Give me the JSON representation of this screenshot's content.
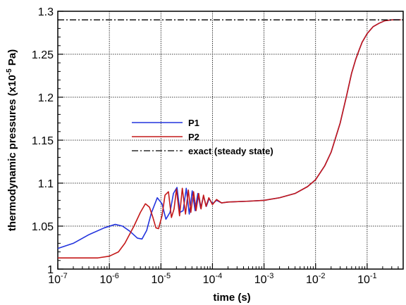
{
  "chart_data": {
    "type": "line",
    "x_scale": "log",
    "xlim": [
      1e-07,
      0.5
    ],
    "ylim": [
      1.0,
      1.3
    ],
    "grid": true,
    "legend_placement": "center-left",
    "xlabel": "time (s)",
    "ylabel_parts": [
      "thermodynamic pressures (x10",
      "-5",
      " Pa)"
    ],
    "x_ticks": [
      {
        "value": 1e-07,
        "base": "10",
        "exp": "-7"
      },
      {
        "value": 1e-06,
        "base": "10",
        "exp": "-6"
      },
      {
        "value": 1e-05,
        "base": "10",
        "exp": "-5"
      },
      {
        "value": 0.0001,
        "base": "10",
        "exp": "-4"
      },
      {
        "value": 0.001,
        "base": "10",
        "exp": "-3"
      },
      {
        "value": 0.01,
        "base": "10",
        "exp": "-2"
      },
      {
        "value": 0.1,
        "base": "10",
        "exp": "-1"
      }
    ],
    "y_ticks": [
      {
        "value": 1.0,
        "label": "1"
      },
      {
        "value": 1.05,
        "label": "1.05"
      },
      {
        "value": 1.1,
        "label": "1.1"
      },
      {
        "value": 1.15,
        "label": "1.15"
      },
      {
        "value": 1.2,
        "label": "1.2"
      },
      {
        "value": 1.25,
        "label": "1.25"
      },
      {
        "value": 1.3,
        "label": "1.3"
      }
    ],
    "series": [
      {
        "name": "P1",
        "color": "#2233dd",
        "dash": "solid",
        "points": [
          [
            1e-07,
            1.024
          ],
          [
            2e-07,
            1.03
          ],
          [
            4e-07,
            1.04
          ],
          [
            8e-07,
            1.048
          ],
          [
            1.3e-06,
            1.052
          ],
          [
            1.8e-06,
            1.05
          ],
          [
            2.5e-06,
            1.044
          ],
          [
            3.5e-06,
            1.036
          ],
          [
            4.3e-06,
            1.035
          ],
          [
            5.3e-06,
            1.045
          ],
          [
            6.5e-06,
            1.065
          ],
          [
            8.5e-06,
            1.083
          ],
          [
            1.05e-05,
            1.076
          ],
          [
            1.25e-05,
            1.058
          ],
          [
            1.5e-05,
            1.066
          ],
          [
            1.75e-05,
            1.088
          ],
          [
            2.05e-05,
            1.095
          ],
          [
            2.35e-05,
            1.066
          ],
          [
            2.7e-05,
            1.068
          ],
          [
            3.1e-05,
            1.094
          ],
          [
            3.55e-05,
            1.064
          ],
          [
            4.05e-05,
            1.091
          ],
          [
            4.6e-05,
            1.068
          ],
          [
            5.2e-05,
            1.088
          ],
          [
            5.9e-05,
            1.071
          ],
          [
            6.7e-05,
            1.085
          ],
          [
            7.6e-05,
            1.073
          ],
          [
            8.6e-05,
            1.082
          ],
          [
            0.0001,
            1.076
          ],
          [
            0.00012,
            1.08
          ],
          [
            0.00015,
            1.077
          ],
          [
            0.0002,
            1.078
          ],
          [
            0.0005,
            1.079
          ],
          [
            0.001,
            1.08
          ],
          [
            0.002,
            1.083
          ],
          [
            0.004,
            1.088
          ],
          [
            0.007,
            1.096
          ],
          [
            0.01,
            1.104
          ],
          [
            0.015,
            1.12
          ],
          [
            0.02,
            1.136
          ],
          [
            0.03,
            1.17
          ],
          [
            0.04,
            1.202
          ],
          [
            0.05,
            1.228
          ],
          [
            0.06,
            1.244
          ],
          [
            0.07,
            1.255
          ],
          [
            0.08,
            1.264
          ],
          [
            0.1,
            1.274
          ],
          [
            0.13,
            1.282
          ],
          [
            0.17,
            1.286
          ],
          [
            0.22,
            1.289
          ],
          [
            0.3,
            1.29
          ],
          [
            0.45,
            1.29
          ]
        ]
      },
      {
        "name": "P2",
        "color": "#c41818",
        "dash": "solid",
        "points": [
          [
            1e-07,
            1.013
          ],
          [
            3e-07,
            1.013
          ],
          [
            6e-07,
            1.013
          ],
          [
            1e-06,
            1.015
          ],
          [
            1.5e-06,
            1.02
          ],
          [
            2e-06,
            1.03
          ],
          [
            3e-06,
            1.05
          ],
          [
            4e-06,
            1.066
          ],
          [
            5e-06,
            1.076
          ],
          [
            6e-06,
            1.072
          ],
          [
            7e-06,
            1.06
          ],
          [
            8e-06,
            1.048
          ],
          [
            9e-06,
            1.047
          ],
          [
            1.05e-05,
            1.062
          ],
          [
            1.2e-05,
            1.086
          ],
          [
            1.4e-05,
            1.09
          ],
          [
            1.6e-05,
            1.06
          ],
          [
            1.8e-05,
            1.07
          ],
          [
            2e-05,
            1.093
          ],
          [
            2.3e-05,
            1.062
          ],
          [
            2.6e-05,
            1.094
          ],
          [
            3e-05,
            1.064
          ],
          [
            3.4e-05,
            1.092
          ],
          [
            3.8e-05,
            1.066
          ],
          [
            4.3e-05,
            1.09
          ],
          [
            4.8e-05,
            1.068
          ],
          [
            5.4e-05,
            1.088
          ],
          [
            6e-05,
            1.07
          ],
          [
            6.7e-05,
            1.086
          ],
          [
            7.5e-05,
            1.073
          ],
          [
            8.5e-05,
            1.083
          ],
          [
            0.0001,
            1.075
          ],
          [
            0.00012,
            1.081
          ],
          [
            0.00015,
            1.077
          ],
          [
            0.0002,
            1.078
          ],
          [
            0.0005,
            1.079
          ],
          [
            0.001,
            1.08
          ],
          [
            0.002,
            1.083
          ],
          [
            0.004,
            1.088
          ],
          [
            0.007,
            1.096
          ],
          [
            0.01,
            1.104
          ],
          [
            0.015,
            1.12
          ],
          [
            0.02,
            1.136
          ],
          [
            0.03,
            1.17
          ],
          [
            0.04,
            1.202
          ],
          [
            0.05,
            1.228
          ],
          [
            0.06,
            1.244
          ],
          [
            0.07,
            1.255
          ],
          [
            0.08,
            1.264
          ],
          [
            0.1,
            1.274
          ],
          [
            0.13,
            1.282
          ],
          [
            0.17,
            1.286
          ],
          [
            0.22,
            1.289
          ],
          [
            0.3,
            1.29
          ],
          [
            0.45,
            1.29
          ]
        ]
      },
      {
        "name": "exact (steady state)",
        "color": "#000000",
        "dash": "dashdot",
        "points": [
          [
            1e-07,
            1.29
          ],
          [
            0.5,
            1.29
          ]
        ]
      }
    ]
  }
}
